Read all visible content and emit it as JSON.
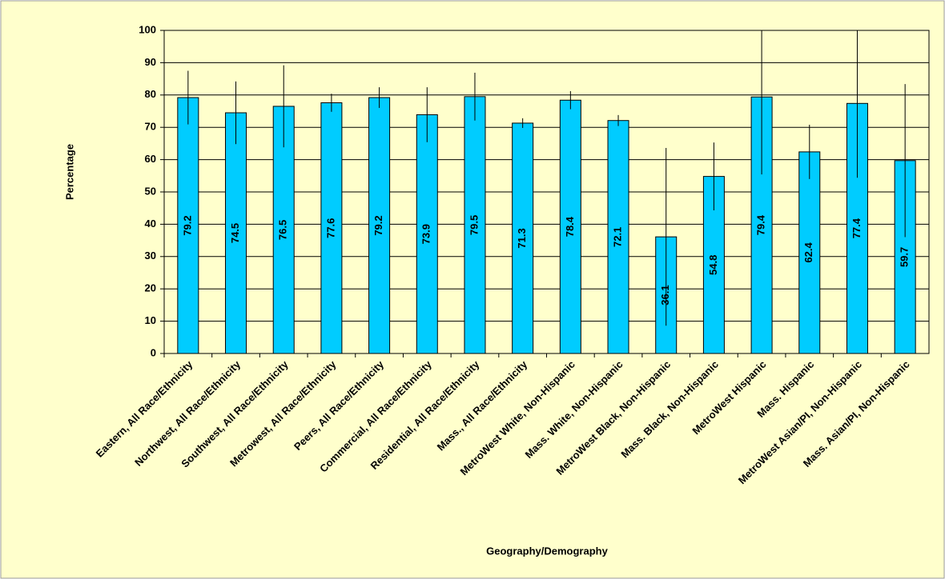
{
  "chart_data": {
    "type": "bar",
    "x_label": "Geography/Demography",
    "y_label": "Percentage",
    "categories": [
      "Eastern,  All Race/Ethnicity",
      "Northwest,  All Race/Ethnicity",
      "Southwest,  All Race/Ethnicity",
      "Metrowest,  All Race/Ethnicity",
      "Peers, All Race/Ethnicity",
      "Commercial,  All Race/Ethnicity",
      "Residential,  All Race/Ethnicity",
      "Mass.,  All Race/Ethnicity",
      "MetroWest White, Non-Hispanic",
      "Mass. White, Non-Hispanic",
      "MetroWest Black, Non-Hispanic",
      "Mass. Black, Non-Hispanic",
      "MetroWest Hispanic",
      "Mass. Hispanic",
      "MetroWest Asian/PI, Non-Hispanic",
      "Mass. Asian/PI, Non-Hispanic"
    ],
    "values": [
      79.2,
      74.5,
      76.5,
      77.6,
      79.2,
      73.9,
      79.5,
      71.3,
      78.4,
      72.1,
      36.1,
      54.8,
      79.4,
      62.4,
      77.4,
      59.7
    ],
    "errors": [
      8.3,
      9.7,
      12.7,
      2.8,
      3.2,
      8.5,
      7.4,
      1.5,
      2.8,
      1.7,
      27.5,
      10.5,
      24,
      8.4,
      23,
      23.7
    ],
    "color": "#00ccff",
    "ylim": [
      0,
      100
    ],
    "yticks": [
      0,
      10,
      20,
      30,
      40,
      50,
      60,
      70,
      80,
      90,
      100
    ],
    "grid": true
  }
}
